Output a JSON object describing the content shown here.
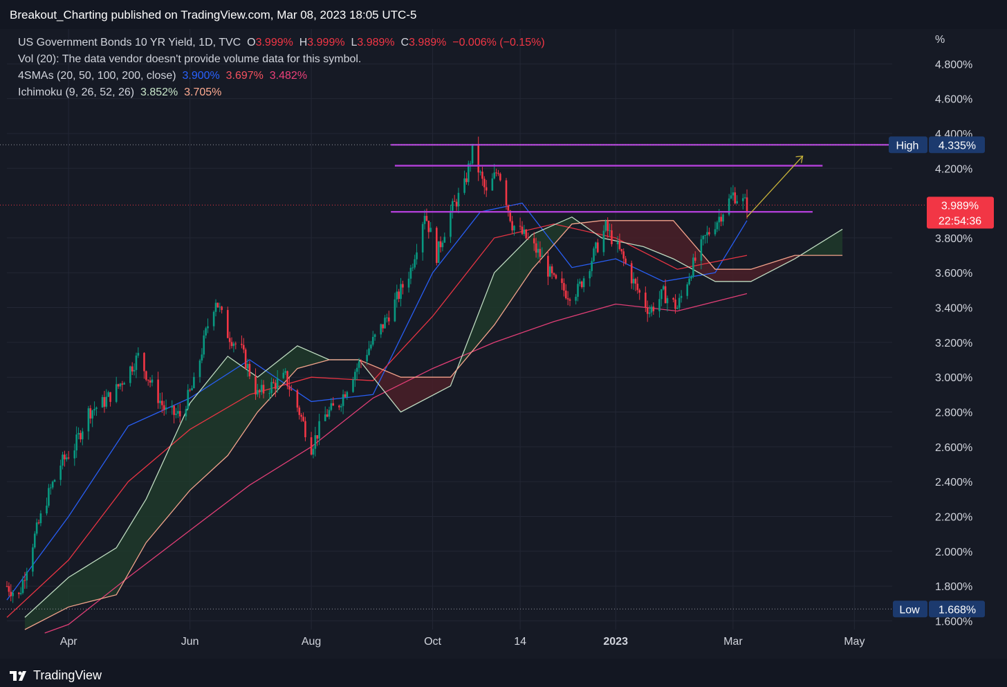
{
  "header": {
    "published_text": "Breakout_Charting published on TradingView.com, Mar 08, 2023 18:05 UTC-5"
  },
  "legend": {
    "symbol": "US Government Bonds 10 YR Yield, 1D, TVC",
    "o_label": "O",
    "o_value": "3.999%",
    "h_label": "H",
    "h_value": "3.999%",
    "l_label": "L",
    "l_value": "3.989%",
    "c_label": "C",
    "c_value": "3.989%",
    "change": "−0.006% (−0.15%)",
    "vol_text": "Vol (20): The data vendor doesn't provide volume data for this symbol.",
    "sma_label": "4SMAs (20, 50, 100, 200, close)",
    "sma_values": [
      "3.900%",
      "3.697%",
      "3.482%"
    ],
    "ichimoku_label": "Ichimoku (9, 26, 52, 26)",
    "ichimoku_values": [
      "3.852%",
      "3.705%"
    ]
  },
  "footer": {
    "brand": "TradingView",
    "logo_icon": "tradingview-logo-icon"
  },
  "colors": {
    "background": "#161a25",
    "up": "#089981",
    "down": "#f23645",
    "sma20": "#2962ff",
    "sma50": "#f23645",
    "sma200": "#ec407a",
    "leading_a": "#c8e6c9",
    "leading_b": "#ffab91",
    "kumo_bull": "#1e3a2a",
    "kumo_bear": "#4a2028",
    "levels": "#b03fd6",
    "arrow": "#c9b43a",
    "high_low_badge": "#1c3a6e",
    "price_badge": "#f23645"
  },
  "chart_data": {
    "type": "candlestick",
    "title": "US Government Bonds 10 YR Yield, 1D, TVC",
    "y_unit": "%",
    "ylim": [
      1.55,
      5.0
    ],
    "y_ticks": [
      "4.800%",
      "4.600%",
      "4.400%",
      "4.200%",
      "3.800%",
      "3.600%",
      "3.400%",
      "3.200%",
      "3.000%",
      "2.800%",
      "2.600%",
      "2.400%",
      "2.200%",
      "2.000%",
      "1.800%",
      "1.600%"
    ],
    "x_ticks": [
      "Apr",
      "Jun",
      "Aug",
      "Oct",
      "14",
      "2023",
      "Mar",
      "May"
    ],
    "x_range": [
      "2022-03-01",
      "2023-05-20"
    ],
    "grid": true,
    "high_label": "High",
    "high_value": "4.335%",
    "low_label": "Low",
    "low_value": "1.668%",
    "last_price": "3.989%",
    "countdown": "22:54:36",
    "horizontal_levels": [
      {
        "value": 4.335,
        "from": "2022-09-10",
        "to": "2023-05-20"
      },
      {
        "value": 4.215,
        "from": "2022-09-12",
        "to": "2023-04-15"
      },
      {
        "value": 3.95,
        "from": "2022-09-10",
        "to": "2023-04-10"
      }
    ],
    "projection_arrow": {
      "from": [
        "2023-03-08",
        3.92
      ],
      "to": [
        "2023-04-05",
        4.27
      ]
    },
    "price_path": [
      [
        "2022-03-01",
        1.8
      ],
      [
        "2022-03-07",
        1.74
      ],
      [
        "2022-03-14",
        2.05
      ],
      [
        "2022-03-21",
        2.3
      ],
      [
        "2022-03-28",
        2.5
      ],
      [
        "2022-04-04",
        2.6
      ],
      [
        "2022-04-11",
        2.8
      ],
      [
        "2022-04-18",
        2.85
      ],
      [
        "2022-04-25",
        2.93
      ],
      [
        "2022-05-06",
        3.12
      ],
      [
        "2022-05-13",
        2.95
      ],
      [
        "2022-05-20",
        2.8
      ],
      [
        "2022-05-27",
        2.78
      ],
      [
        "2022-06-03",
        2.96
      ],
      [
        "2022-06-10",
        3.3
      ],
      [
        "2022-06-14",
        3.45
      ],
      [
        "2022-06-20",
        3.25
      ],
      [
        "2022-06-27",
        3.15
      ],
      [
        "2022-07-05",
        2.9
      ],
      [
        "2022-07-12",
        2.95
      ],
      [
        "2022-07-19",
        3.0
      ],
      [
        "2022-07-26",
        2.8
      ],
      [
        "2022-08-01",
        2.6
      ],
      [
        "2022-08-08",
        2.78
      ],
      [
        "2022-08-15",
        2.85
      ],
      [
        "2022-08-22",
        3.02
      ],
      [
        "2022-08-29",
        3.15
      ],
      [
        "2022-09-06",
        3.3
      ],
      [
        "2022-09-13",
        3.45
      ],
      [
        "2022-09-20",
        3.62
      ],
      [
        "2022-09-27",
        3.95
      ],
      [
        "2022-10-03",
        3.7
      ],
      [
        "2022-10-10",
        3.95
      ],
      [
        "2022-10-17",
        4.1
      ],
      [
        "2022-10-21",
        4.3
      ],
      [
        "2022-10-28",
        4.05
      ],
      [
        "2022-11-03",
        4.2
      ],
      [
        "2022-11-10",
        3.88
      ],
      [
        "2022-11-17",
        3.8
      ],
      [
        "2022-11-24",
        3.7
      ],
      [
        "2022-12-01",
        3.55
      ],
      [
        "2022-12-08",
        3.48
      ],
      [
        "2022-12-13",
        3.5
      ],
      [
        "2022-12-20",
        3.68
      ],
      [
        "2022-12-27",
        3.86
      ],
      [
        "2023-01-04",
        3.7
      ],
      [
        "2023-01-11",
        3.52
      ],
      [
        "2023-01-18",
        3.38
      ],
      [
        "2023-01-25",
        3.48
      ],
      [
        "2023-02-01",
        3.4
      ],
      [
        "2023-02-08",
        3.62
      ],
      [
        "2023-02-15",
        3.8
      ],
      [
        "2023-02-22",
        3.92
      ],
      [
        "2023-03-01",
        4.05
      ],
      [
        "2023-03-08",
        3.99
      ]
    ],
    "series": [
      {
        "name": "SMA 20",
        "values": [
          [
            "2022-03-01",
            1.72
          ],
          [
            "2022-04-01",
            2.2
          ],
          [
            "2022-05-01",
            2.72
          ],
          [
            "2022-06-01",
            2.88
          ],
          [
            "2022-07-01",
            3.1
          ],
          [
            "2022-08-01",
            2.86
          ],
          [
            "2022-09-01",
            2.9
          ],
          [
            "2022-10-01",
            3.6
          ],
          [
            "2022-10-25",
            3.95
          ],
          [
            "2022-11-15",
            4.0
          ],
          [
            "2022-12-10",
            3.63
          ],
          [
            "2023-01-01",
            3.68
          ],
          [
            "2023-01-25",
            3.55
          ],
          [
            "2023-02-20",
            3.6
          ],
          [
            "2023-03-08",
            3.9
          ]
        ]
      },
      {
        "name": "SMA 50",
        "values": [
          [
            "2022-03-01",
            1.62
          ],
          [
            "2022-04-01",
            1.95
          ],
          [
            "2022-05-01",
            2.4
          ],
          [
            "2022-06-01",
            2.7
          ],
          [
            "2022-07-01",
            2.9
          ],
          [
            "2022-08-01",
            3.0
          ],
          [
            "2022-09-01",
            2.98
          ],
          [
            "2022-10-01",
            3.35
          ],
          [
            "2022-11-01",
            3.8
          ],
          [
            "2022-12-01",
            3.88
          ],
          [
            "2023-01-01",
            3.8
          ],
          [
            "2023-02-01",
            3.62
          ],
          [
            "2023-03-08",
            3.7
          ]
        ]
      },
      {
        "name": "SMA 200",
        "values": [
          [
            "2022-03-20",
            1.53
          ],
          [
            "2022-04-01",
            1.58
          ],
          [
            "2022-05-01",
            1.85
          ],
          [
            "2022-06-01",
            2.12
          ],
          [
            "2022-07-01",
            2.38
          ],
          [
            "2022-08-01",
            2.6
          ],
          [
            "2022-09-01",
            2.88
          ],
          [
            "2022-10-01",
            3.05
          ],
          [
            "2022-11-01",
            3.2
          ],
          [
            "2022-12-01",
            3.32
          ],
          [
            "2023-01-01",
            3.42
          ],
          [
            "2023-02-01",
            3.38
          ],
          [
            "2023-03-08",
            3.48
          ]
        ]
      },
      {
        "name": "Leading Span A",
        "values": [
          [
            "2022-03-10",
            1.62
          ],
          [
            "2022-04-01",
            1.85
          ],
          [
            "2022-04-25",
            2.02
          ],
          [
            "2022-05-10",
            2.3
          ],
          [
            "2022-06-01",
            2.85
          ],
          [
            "2022-06-20",
            3.12
          ],
          [
            "2022-07-05",
            3.0
          ],
          [
            "2022-07-25",
            3.18
          ],
          [
            "2022-08-10",
            3.1
          ],
          [
            "2022-08-25",
            3.1
          ],
          [
            "2022-09-15",
            2.8
          ],
          [
            "2022-10-10",
            2.95
          ],
          [
            "2022-11-01",
            3.6
          ],
          [
            "2022-11-20",
            3.82
          ],
          [
            "2022-12-10",
            3.92
          ],
          [
            "2022-12-25",
            3.8
          ],
          [
            "2023-01-15",
            3.75
          ],
          [
            "2023-01-30",
            3.68
          ],
          [
            "2023-02-20",
            3.55
          ],
          [
            "2023-03-10",
            3.55
          ],
          [
            "2023-04-01",
            3.68
          ],
          [
            "2023-04-25",
            3.85
          ]
        ]
      },
      {
        "name": "Leading Span B",
        "values": [
          [
            "2022-03-10",
            1.55
          ],
          [
            "2022-04-01",
            1.68
          ],
          [
            "2022-04-25",
            1.75
          ],
          [
            "2022-05-10",
            2.05
          ],
          [
            "2022-06-01",
            2.35
          ],
          [
            "2022-06-20",
            2.55
          ],
          [
            "2022-07-05",
            2.8
          ],
          [
            "2022-07-25",
            3.05
          ],
          [
            "2022-08-10",
            3.1
          ],
          [
            "2022-08-25",
            3.1
          ],
          [
            "2022-09-15",
            3.0
          ],
          [
            "2022-10-10",
            3.0
          ],
          [
            "2022-11-01",
            3.3
          ],
          [
            "2022-11-20",
            3.62
          ],
          [
            "2022-12-10",
            3.88
          ],
          [
            "2022-12-25",
            3.9
          ],
          [
            "2023-01-15",
            3.9
          ],
          [
            "2023-01-30",
            3.9
          ],
          [
            "2023-02-20",
            3.62
          ],
          [
            "2023-03-10",
            3.62
          ],
          [
            "2023-04-01",
            3.7
          ],
          [
            "2023-04-25",
            3.7
          ]
        ]
      }
    ]
  }
}
